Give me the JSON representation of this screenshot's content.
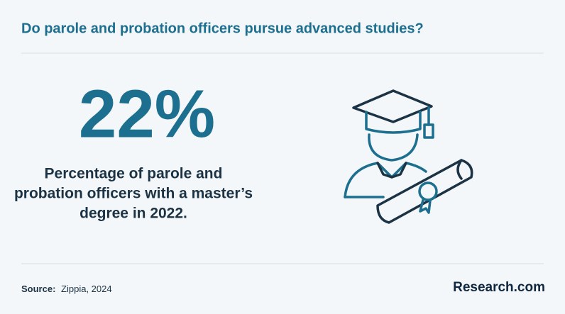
{
  "header": {
    "title": "Do parole and probation officers pursue advanced studies?"
  },
  "stat": {
    "value": "22%",
    "description_lines": [
      "Percentage of parole and",
      "probation officers with a master’s",
      "degree in 2022."
    ]
  },
  "footer": {
    "source_label": "Source:",
    "source": "Zippia, 2024",
    "brand": "Research.com"
  }
}
